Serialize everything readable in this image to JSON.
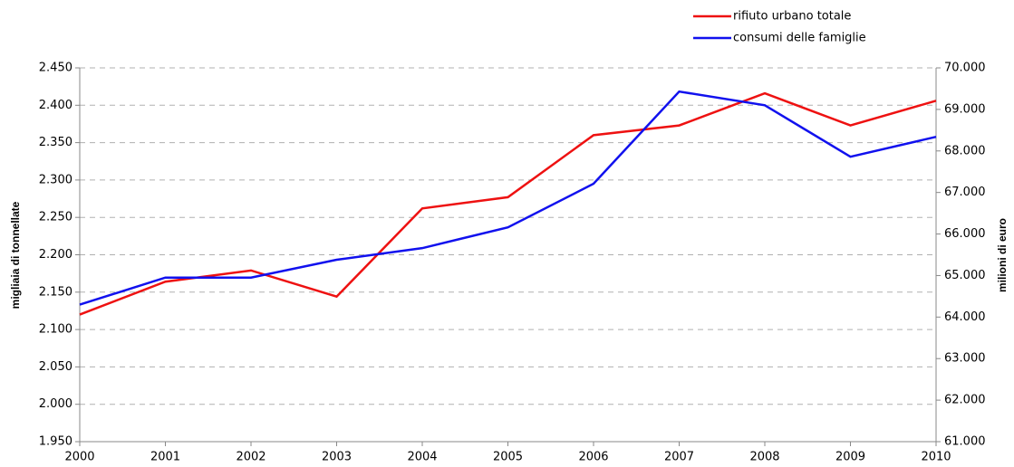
{
  "chart_data": {
    "type": "line",
    "categories": [
      "2000",
      "2001",
      "2002",
      "2003",
      "2004",
      "2005",
      "2006",
      "2007",
      "2008",
      "2009",
      "2010"
    ],
    "series": [
      {
        "name": "rifiuto urbano totale",
        "color": "#ee1111",
        "values": [
          2120,
          2164,
          2179,
          2144,
          2262,
          2277,
          2360,
          2373,
          2416,
          2373,
          2406
        ]
      },
      {
        "name": "consumi delle famiglie",
        "color": "#1111ee",
        "axis": "y2",
        "values": [
          64300,
          64950,
          64950,
          65380,
          65660,
          66160,
          67210,
          69430,
          69100,
          67860,
          68340
        ]
      }
    ],
    "ylabel": "migliaia di tonnellate",
    "y2label": "milioni di euro",
    "ylim": [
      1950,
      2450
    ],
    "yticks": [
      {
        "value": 1950,
        "label": "1.950"
      },
      {
        "value": 2000,
        "label": "2.000"
      },
      {
        "value": 2050,
        "label": "2.050"
      },
      {
        "value": 2100,
        "label": "2.100"
      },
      {
        "value": 2150,
        "label": "2.150"
      },
      {
        "value": 2200,
        "label": "2.200"
      },
      {
        "value": 2250,
        "label": "2.250"
      },
      {
        "value": 2300,
        "label": "2.300"
      },
      {
        "value": 2350,
        "label": "2.350"
      },
      {
        "value": 2400,
        "label": "2.400"
      },
      {
        "value": 2450,
        "label": "2.450"
      }
    ],
    "y2lim": [
      61000,
      70000
    ],
    "y2ticks": [
      {
        "value": 61000,
        "label": "61.000"
      },
      {
        "value": 62000,
        "label": "62.000"
      },
      {
        "value": 63000,
        "label": "63.000"
      },
      {
        "value": 64000,
        "label": "64.000"
      },
      {
        "value": 65000,
        "label": "65.000"
      },
      {
        "value": 66000,
        "label": "66.000"
      },
      {
        "value": 67000,
        "label": "67.000"
      },
      {
        "value": 68000,
        "label": "68.000"
      },
      {
        "value": 69000,
        "label": "69.000"
      },
      {
        "value": 70000,
        "label": "70.000"
      }
    ],
    "grid": true,
    "legend": "top-right"
  }
}
